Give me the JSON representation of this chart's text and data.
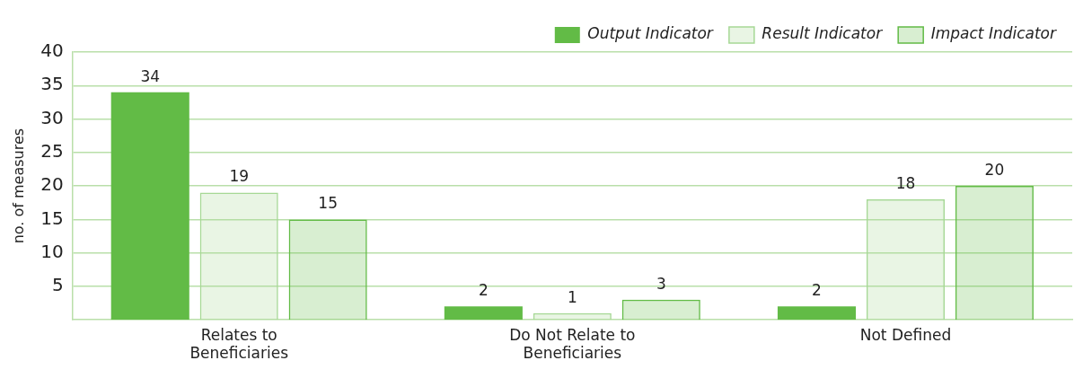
{
  "chart_data": {
    "type": "bar",
    "ylabel": "no. of measures",
    "categories": [
      "Relates to Beneficiaries",
      "Do Not Relate to Beneficiaries",
      "Not Defined"
    ],
    "series": [
      {
        "name": "Output Indicator",
        "color": "#62bb46",
        "values": [
          34,
          2,
          2
        ]
      },
      {
        "name": "Result Indicator",
        "color": "#a6d895",
        "values": [
          19,
          1,
          18
        ]
      },
      {
        "name": "Impact Indicator",
        "color": "#62bb46",
        "values": [
          15,
          3,
          20
        ]
      }
    ],
    "ylim": [
      0,
      40
    ],
    "yticks": [
      5,
      10,
      15,
      20,
      25,
      30,
      35,
      40
    ],
    "grid": "y",
    "legend": "top right",
    "data_labels": true
  }
}
